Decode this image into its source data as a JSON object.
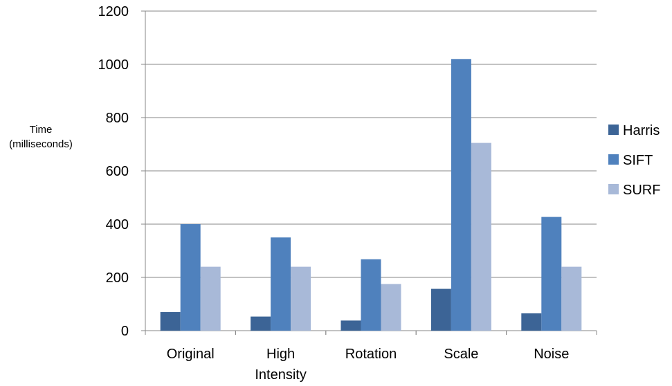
{
  "chart_data": {
    "type": "bar",
    "ylabel": [
      "Time",
      "(milliseconds)"
    ],
    "ylim": [
      0,
      1200
    ],
    "yticks": [
      "0",
      "200",
      "400",
      "600",
      "800",
      "1000",
      "1200"
    ],
    "categories": [
      [
        "Original"
      ],
      [
        "High",
        "Intensity"
      ],
      [
        "Rotation"
      ],
      [
        "Scale"
      ],
      [
        "Noise"
      ]
    ],
    "grid": "horizontal",
    "legend_position": "right",
    "series": [
      {
        "name": "Harris",
        "color": "#3c6496",
        "values": [
          70,
          53,
          38,
          157,
          65
        ]
      },
      {
        "name": "SIFT",
        "color": "#4f81bd",
        "values": [
          400,
          350,
          268,
          1020,
          427
        ]
      },
      {
        "name": "SURF",
        "color": "#a8b9d8",
        "values": [
          240,
          240,
          175,
          705,
          240
        ]
      }
    ]
  }
}
